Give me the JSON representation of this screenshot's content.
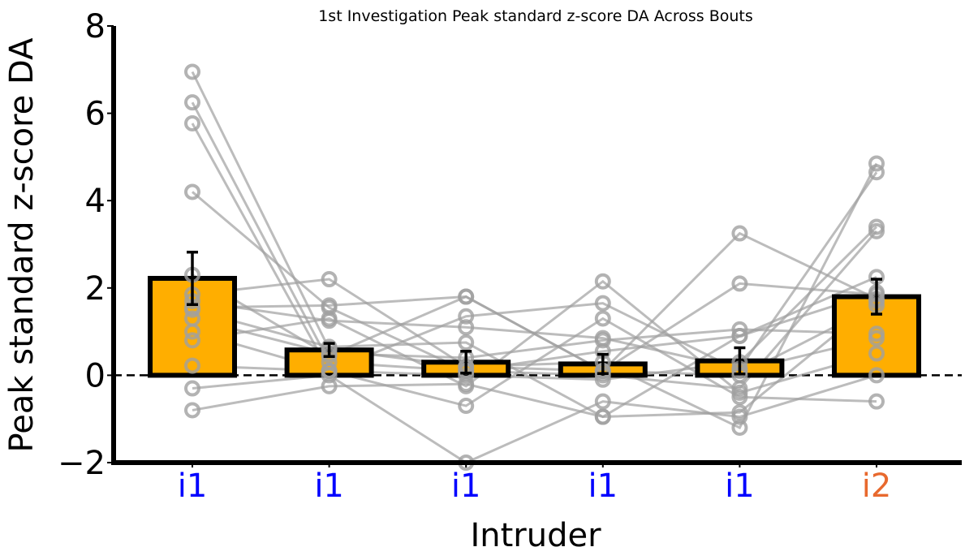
{
  "chart_data": {
    "type": "bar",
    "title": "1st Investigation Peak standard z-score DA Across Bouts",
    "xlabel": "Intruder",
    "ylabel": "Peak standard z-score DA",
    "ylim": [
      -2,
      8
    ],
    "yticks": [
      -2,
      0,
      2,
      4,
      6,
      8
    ],
    "ytick_labels": [
      "−2",
      "0",
      "2",
      "4",
      "6",
      "8"
    ],
    "categories": [
      "i1",
      "i1",
      "i1",
      "i1",
      "i1",
      "i2"
    ],
    "category_colors": [
      "#0000ff",
      "#0000ff",
      "#0000ff",
      "#0000ff",
      "#0000ff",
      "#e8692e"
    ],
    "bar_color": "#ffae00",
    "bar_edge_color": "#000000",
    "point_color": "#a0a0a0",
    "line_color": "#a0a0a0",
    "reference_line": 0,
    "means": [
      2.22,
      0.58,
      0.3,
      0.26,
      0.33,
      1.8
    ],
    "sem": [
      0.6,
      0.15,
      0.25,
      0.22,
      0.3,
      0.4
    ],
    "subjects": [
      [
        6.95,
        0.6,
        0.2,
        0.1,
        0.0,
        1.6
      ],
      [
        6.25,
        0.3,
        0.1,
        0.0,
        -0.3,
        3.3
      ],
      [
        5.77,
        0.1,
        0.0,
        -0.1,
        0.3,
        3.4
      ],
      [
        4.2,
        1.55,
        0.1,
        0.55,
        0.9,
        1.9
      ],
      [
        2.3,
        0.45,
        1.8,
        0.1,
        3.25,
        1.75
      ],
      [
        1.85,
        2.2,
        0.2,
        0.3,
        -1.2,
        4.85
      ],
      [
        1.7,
        1.25,
        1.1,
        0.85,
        0.15,
        4.65
      ],
      [
        1.55,
        1.6,
        1.8,
        0.1,
        2.1,
        1.85
      ],
      [
        1.5,
        0.65,
        0.75,
        -0.95,
        0.9,
        2.25
      ],
      [
        1.3,
        0.5,
        0.4,
        0.8,
        1.05,
        0.95
      ],
      [
        1.0,
        0.1,
        1.35,
        1.65,
        0.1,
        0.85
      ],
      [
        0.8,
        1.3,
        -0.25,
        2.15,
        -0.4,
        0.5
      ],
      [
        0.22,
        0.1,
        -0.7,
        1.3,
        -0.5,
        -0.6
      ],
      [
        -0.3,
        0.0,
        -2.0,
        -0.6,
        -0.95,
        0.0
      ],
      [
        -0.8,
        -0.25,
        -0.2,
        -0.95,
        -0.85,
        1.7
      ]
    ]
  }
}
